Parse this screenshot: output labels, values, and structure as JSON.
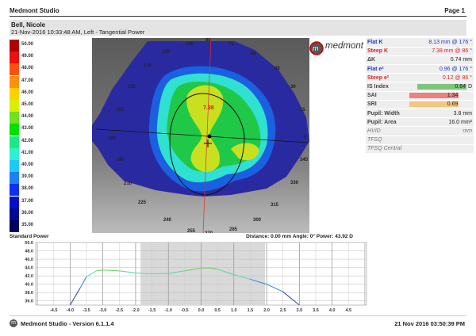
{
  "header": {
    "app_title": "Medmont Studio",
    "page": "Page 1"
  },
  "patient": {
    "name": "Bell, Nicole",
    "info": "21-Nov-2016 10:33:48 AM, Left - Tangential Power"
  },
  "legend": [
    {
      "label": "50.00",
      "color": "#b00000"
    },
    {
      "label": "49.00",
      "color": "#ee1010"
    },
    {
      "label": "48.00",
      "color": "#ff5010"
    },
    {
      "label": "47.00",
      "color": "#ff9010"
    },
    {
      "label": "46.00",
      "color": "#ffd000"
    },
    {
      "label": "45.00",
      "color": "#d8f000"
    },
    {
      "label": "44.00",
      "color": "#70e020"
    },
    {
      "label": "43.00",
      "color": "#00e000"
    },
    {
      "label": "42.00",
      "color": "#20e880"
    },
    {
      "label": "41.00",
      "color": "#30f0d0"
    },
    {
      "label": "40.00",
      "color": "#20c8f8"
    },
    {
      "label": "39.00",
      "color": "#2080f0"
    },
    {
      "label": "38.00",
      "color": "#1030f0"
    },
    {
      "label": "37.00",
      "color": "#0010c8"
    },
    {
      "label": "36.00",
      "color": "#000a90"
    },
    {
      "label": "35.00",
      "color": "#000060"
    }
  ],
  "map": {
    "center_value": "7.38",
    "angles": [
      "90",
      "105",
      "75",
      "120",
      "60",
      "135",
      "45",
      "150",
      "30",
      "165",
      "15",
      "180",
      "0",
      "195",
      "345",
      "210",
      "330",
      "225",
      "315",
      "240",
      "300",
      "255",
      "270",
      "285"
    ]
  },
  "logo": {
    "text": "medmont"
  },
  "table": {
    "flat_k": {
      "label": "Flat K",
      "value": "8.13 mm @ 176 °"
    },
    "steep_k": {
      "label": "Steep K",
      "value": "7.38 mm @  86 °"
    },
    "delta_k": {
      "label": "ΔK",
      "value": "0.74 mm"
    },
    "flat_e": {
      "label": "Flat e²",
      "value": "0.96 @ 176 °"
    },
    "steep_e": {
      "label": "Steep e²",
      "value": "0.12 @  86 °"
    },
    "is_index": {
      "label": "IS Index",
      "value": "0.64",
      "unit": "D",
      "color": "#7dc47d"
    },
    "sai": {
      "label": "SAI",
      "value": "1.34",
      "color": "#ef8080"
    },
    "sri": {
      "label": "SRI",
      "value": "0.69",
      "color": "#f2c784"
    },
    "pupil_width": {
      "label": "Pupil: Width",
      "value": "3.8 mm"
    },
    "pupil_area": {
      "label": "Pupil: Area",
      "value": "16.0 mm²"
    },
    "hvid": {
      "label": "HVID",
      "value": "mm"
    },
    "tfsq": {
      "label": "TFSQ",
      "value": ""
    },
    "tfsq_central": {
      "label": "TFSQ Central",
      "value": ""
    }
  },
  "profile": {
    "title": "Standard Power",
    "readout": "Distance: 0.00 mm Angle: 0° Power:  43.92 D"
  },
  "chart_data": {
    "type": "line",
    "x": [
      -4.0,
      -3.7,
      -3.5,
      -3.2,
      -3.0,
      -2.5,
      -2.0,
      -1.5,
      -1.0,
      -0.5,
      0.0,
      0.3,
      0.5,
      1.0,
      1.5,
      2.0,
      2.5,
      3.0
    ],
    "y": [
      35.0,
      39.0,
      41.8,
      43.2,
      43.4,
      43.2,
      42.7,
      42.5,
      42.6,
      43.2,
      43.9,
      43.9,
      43.6,
      42.3,
      41.2,
      40.0,
      38.2,
      35.0
    ],
    "xlim": [
      -5.05,
      5.05
    ],
    "ylim": [
      35,
      50
    ],
    "xticks": [
      "-4.5",
      "-4.0",
      "-3.5",
      "-3.0",
      "-2.5",
      "-2.0",
      "-1.5",
      "-1.0",
      "-0.5",
      "0.0",
      "0.5",
      "1.0",
      "1.5",
      "2.0",
      "2.5",
      "3.0",
      "3.5",
      "4.0",
      "4.5"
    ],
    "yticks": [
      "50.0",
      "48.0",
      "46.0",
      "44.0",
      "42.0",
      "40.0",
      "38.0",
      "36.0"
    ],
    "shaded_range": [
      -1.85,
      1.95
    ],
    "grid": true
  },
  "footer": {
    "version": "Medmont Studio - Version 6.1.1.4",
    "datetime": "21 Nov 2016 03:50:39 PM",
    "icon": "medmont-logo-icon"
  }
}
